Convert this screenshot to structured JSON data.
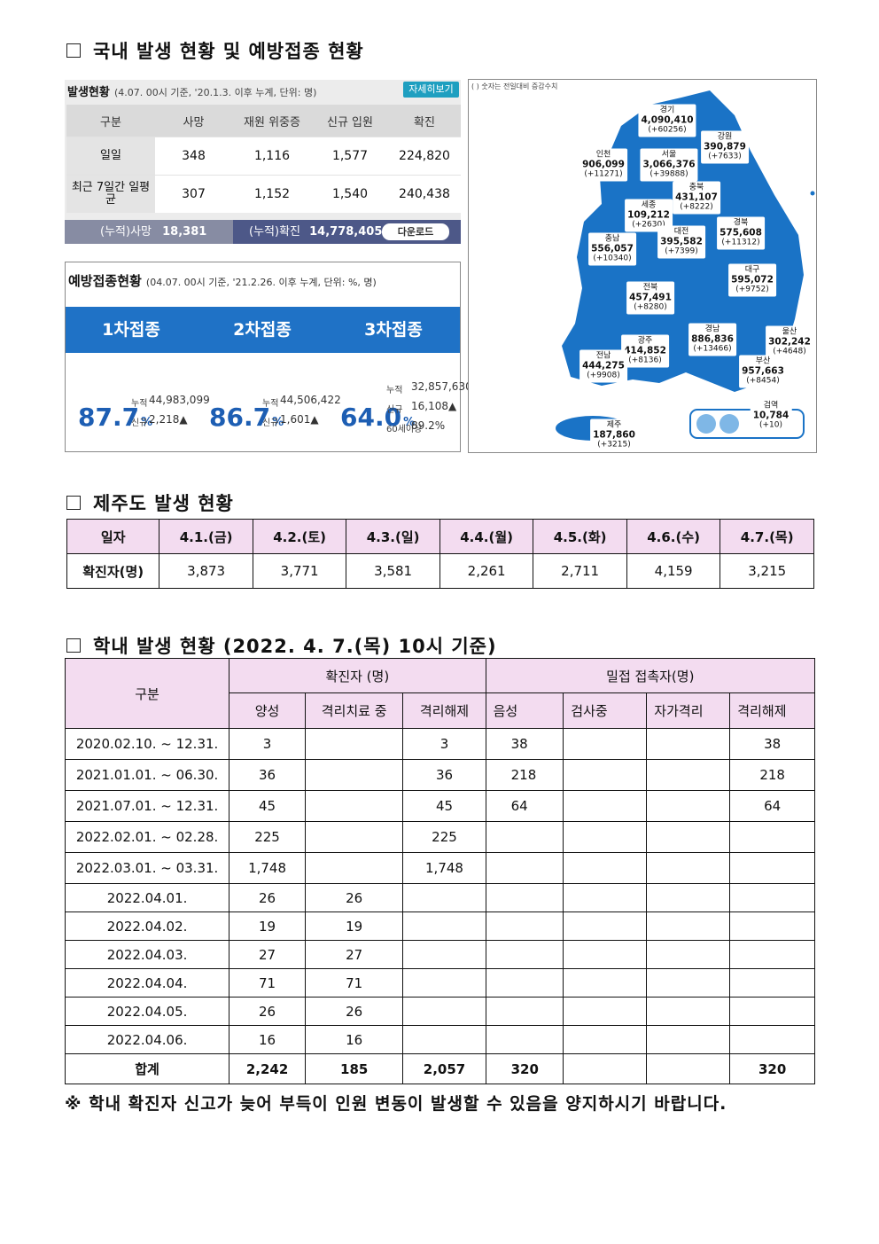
{
  "section1": {
    "title": "국내 발생 현황 및 예방접종 현황"
  },
  "occurrence": {
    "title": "발생현황",
    "subtitle": "(4.07. 00시 기준, '20.1.3. 이후 누계, 단위: 명)",
    "button": "자세히보기",
    "headers": [
      "구분",
      "사망",
      "재원 위중증",
      "신규 입원",
      "확진"
    ],
    "rows": [
      [
        "일일",
        "348",
        "1,116",
        "1,577",
        "224,820"
      ],
      [
        "최근 7일간 일평균",
        "307",
        "1,152",
        "1,540",
        "240,438"
      ]
    ],
    "footer": {
      "death_label": "(누적)사망",
      "death_value": "18,381",
      "confirmed_label": "(누적)확진",
      "confirmed_value": "14,778,405",
      "download": "다운로드"
    }
  },
  "vaccination": {
    "title": "예방접종현황",
    "subtitle": "(04.07. 00시 기준, '21.2.26. 이후 누계, 단위: %, 명)",
    "unit": "%",
    "doses": [
      {
        "name": "1차접종",
        "rate": "87.7",
        "details": [
          {
            "label": "누적",
            "value": "44,983,099"
          },
          {
            "label": "신규",
            "value": "2,218▲"
          }
        ]
      },
      {
        "name": "2차접종",
        "rate": "86.7",
        "details": [
          {
            "label": "누적",
            "value": "44,506,422"
          },
          {
            "label": "신규",
            "value": "1,601▲"
          }
        ]
      },
      {
        "name": "3차접종",
        "rate": "64.0",
        "details": [
          {
            "label": "누적",
            "value": "32,857,630"
          },
          {
            "label": "신규",
            "value": "16,108▲"
          },
          {
            "label": "60세이상",
            "value": "89.2%"
          }
        ]
      }
    ]
  },
  "map": {
    "note": "( ) 숫자는 전일대비 증감수치",
    "regions": [
      {
        "name": "경기",
        "total": "4,090,410",
        "change": "(+60256)"
      },
      {
        "name": "강원",
        "total": "390,879",
        "change": "(+7633)"
      },
      {
        "name": "인천",
        "total": "906,099",
        "change": "(+11271)"
      },
      {
        "name": "서울",
        "total": "3,066,376",
        "change": "(+39888)"
      },
      {
        "name": "충북",
        "total": "431,107",
        "change": "(+8222)"
      },
      {
        "name": "세종",
        "total": "109,212",
        "change": "(+2630)"
      },
      {
        "name": "경북",
        "total": "575,608",
        "change": "(+11312)"
      },
      {
        "name": "충남",
        "total": "556,057",
        "change": "(+10340)"
      },
      {
        "name": "대전",
        "total": "395,582",
        "change": "(+7399)"
      },
      {
        "name": "대구",
        "total": "595,072",
        "change": "(+9752)"
      },
      {
        "name": "전북",
        "total": "457,491",
        "change": "(+8280)"
      },
      {
        "name": "경남",
        "total": "886,836",
        "change": "(+13466)"
      },
      {
        "name": "울산",
        "total": "302,242",
        "change": "(+4648)"
      },
      {
        "name": "광주",
        "total": "414,852",
        "change": "(+8136)"
      },
      {
        "name": "전남",
        "total": "444,275",
        "change": "(+9908)"
      },
      {
        "name": "부산",
        "total": "957,663",
        "change": "(+8454)"
      },
      {
        "name": "검역",
        "total": "10,784",
        "change": "(+10)"
      },
      {
        "name": "제주",
        "total": "187,860",
        "change": "(+3215)"
      }
    ]
  },
  "section2": {
    "title": "제주도 발생 현황",
    "header": [
      "일자",
      "4.1.(금)",
      "4.2.(토)",
      "4.3.(일)",
      "4.4.(월)",
      "4.5.(화)",
      "4.6.(수)",
      "4.7.(목)"
    ],
    "row": [
      "확진자(명)",
      "3,873",
      "3,771",
      "3,581",
      "2,261",
      "2,711",
      "4,159",
      "3,215"
    ]
  },
  "section3": {
    "title": "학내 발생 현황 (2022. 4. 7.(목) 10시 기준)",
    "header_top": [
      "구분",
      "확진자 (명)",
      "밀접 접촉자(명)"
    ],
    "header_sub": [
      "양성",
      "격리치료 중",
      "격리해제",
      "음성",
      "검사중",
      "자가격리",
      "격리해제"
    ],
    "rows": [
      [
        "2020.02.10. ~ 12.31.",
        "3",
        null,
        "3",
        "38",
        null,
        null,
        "38"
      ],
      [
        "2021.01.01. ~ 06.30.",
        "36",
        null,
        "36",
        "218",
        null,
        null,
        "218"
      ],
      [
        "2021.07.01. ~ 12.31.",
        "45",
        null,
        "45",
        "64",
        null,
        null,
        "64"
      ],
      [
        "2022.02.01. ~ 02.28.",
        "225",
        null,
        "225",
        null,
        null,
        null,
        null
      ],
      [
        "2022.03.01. ~ 03.31.",
        "1,748",
        null,
        "1,748",
        null,
        null,
        null,
        null
      ],
      [
        "2022.04.01.",
        "26",
        "26",
        null,
        null,
        null,
        null,
        null
      ],
      [
        "2022.04.02.",
        "19",
        "19",
        null,
        null,
        null,
        null,
        null
      ],
      [
        "2022.04.03.",
        "27",
        "27",
        null,
        null,
        null,
        null,
        null
      ],
      [
        "2022.04.04.",
        "71",
        "71",
        null,
        null,
        null,
        null,
        null
      ],
      [
        "2022.04.05.",
        "26",
        "26",
        null,
        null,
        null,
        null,
        null
      ],
      [
        "2022.04.06.",
        "16",
        "16",
        null,
        null,
        null,
        null,
        null
      ]
    ],
    "total": [
      "합계",
      "2,242",
      "185",
      "2,057",
      "320",
      null,
      null,
      "320"
    ],
    "footnote": "※ 학내 확진자 신고가 늦어 부득이 인원 변동이 발생할 수 있음을 양지하시기 바랍니다."
  }
}
